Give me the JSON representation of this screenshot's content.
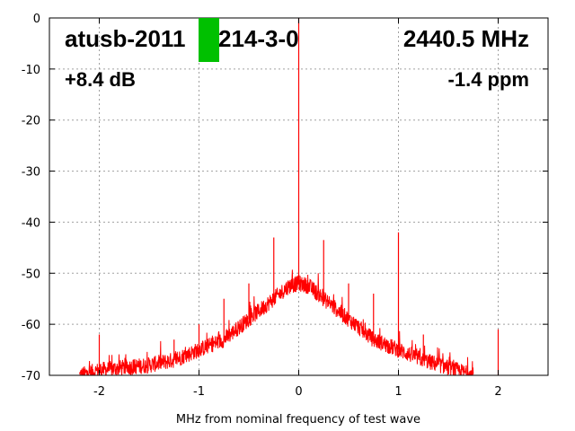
{
  "chart_data": {
    "type": "line",
    "title": "",
    "xlabel": "MHz from nominal frequency of test wave",
    "ylabel": "",
    "xlim": [
      -2.5,
      2.5
    ],
    "ylim": [
      -70,
      0
    ],
    "x_ticks": [
      -2,
      -1,
      0,
      1,
      2
    ],
    "y_ticks": [
      0,
      -10,
      -20,
      -30,
      -40,
      -50,
      -60,
      -70
    ],
    "grid": true,
    "series_color": "#ff0000",
    "indicator_color": "#00c000",
    "annotations": {
      "device": "atusb-2011",
      "device_suffix": "214-3-0",
      "frequency": "2440.5 MHz",
      "gain": "+8.4 dB",
      "offset": "-1.4 ppm"
    },
    "noise_floor": {
      "x": [
        -2.2,
        -2.0,
        -1.75,
        -1.5,
        -1.25,
        -1.0,
        -0.75,
        -0.5,
        -0.25,
        -0.1,
        0.0,
        0.1,
        0.25,
        0.5,
        0.75,
        1.0,
        1.25,
        1.5,
        1.75
      ],
      "y": [
        -70,
        -69,
        -68.5,
        -68,
        -67,
        -65,
        -63,
        -59,
        -55,
        -52.5,
        -52,
        -52.5,
        -55,
        -59,
        -63,
        -65,
        -67,
        -68.5,
        -70
      ]
    },
    "spurs": [
      {
        "x": -2.0,
        "y": -62
      },
      {
        "x": -1.25,
        "y": -63
      },
      {
        "x": -1.0,
        "y": -60
      },
      {
        "x": -0.75,
        "y": -55
      },
      {
        "x": -0.5,
        "y": -52
      },
      {
        "x": -0.25,
        "y": -43
      },
      {
        "x": 0.0,
        "y": 0
      },
      {
        "x": 0.25,
        "y": -43.5
      },
      {
        "x": 0.5,
        "y": -52
      },
      {
        "x": 0.75,
        "y": -54
      },
      {
        "x": 1.0,
        "y": -42
      },
      {
        "x": 1.25,
        "y": -62
      },
      {
        "x": 2.0,
        "y": -61
      }
    ]
  }
}
